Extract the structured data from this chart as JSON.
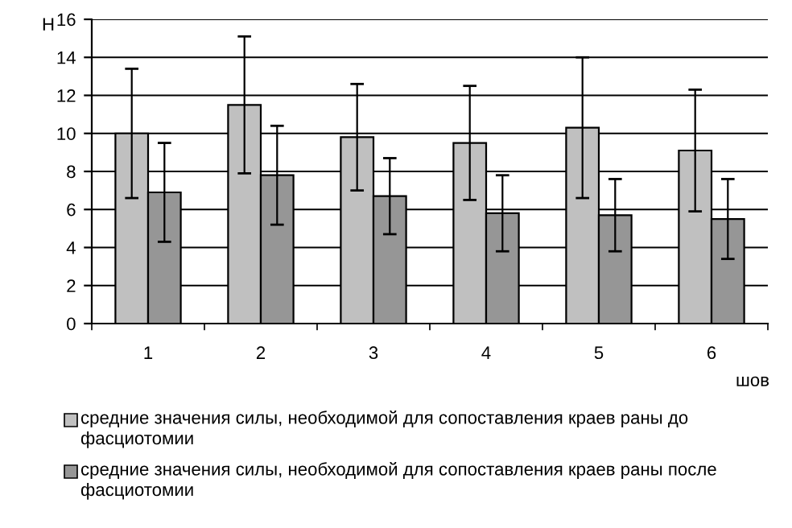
{
  "chart_data": {
    "type": "bar",
    "ylabel": "Н",
    "xlabel": "шов",
    "categories": [
      "1",
      "2",
      "3",
      "4",
      "5",
      "6"
    ],
    "series": [
      {
        "name": "средние значения силы, необходимой для сопоставления краев раны до фасциотомии",
        "color": "#c0c0c0",
        "values": [
          10.0,
          11.5,
          9.8,
          9.5,
          10.3,
          9.1
        ],
        "errors": [
          3.4,
          3.6,
          2.8,
          3.0,
          3.7,
          3.2
        ]
      },
      {
        "name": "средние значения силы, необходимой для сопоставления краев раны после фасциотомии",
        "color": "#969696",
        "values": [
          6.9,
          7.8,
          6.7,
          5.8,
          5.7,
          5.5
        ],
        "errors": [
          2.6,
          2.6,
          2.0,
          2.0,
          1.9,
          2.1
        ]
      }
    ],
    "ylim": [
      0,
      16
    ],
    "yticks": [
      0,
      2,
      4,
      6,
      8,
      10,
      12,
      14,
      16
    ],
    "grid": "y",
    "legend": "bottom"
  }
}
